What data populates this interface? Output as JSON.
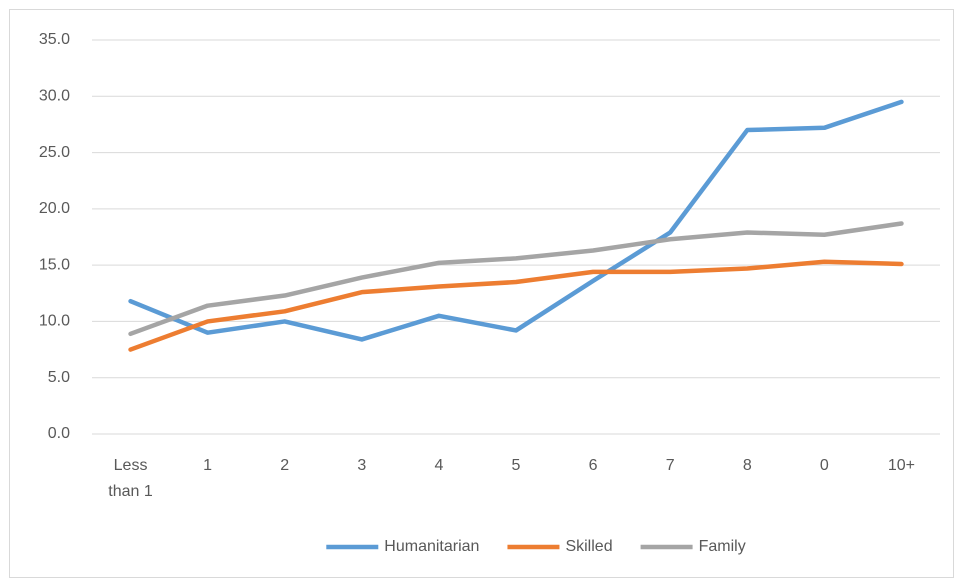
{
  "chart_data": {
    "type": "line",
    "categories": [
      "Less than 1",
      "1",
      "2",
      "3",
      "4",
      "5",
      "6",
      "7",
      "8",
      "0",
      "10+"
    ],
    "series": [
      {
        "name": "Humanitarian",
        "color": "#5b9bd5",
        "values": [
          11.8,
          9.0,
          10.0,
          8.4,
          10.5,
          9.2,
          13.6,
          17.9,
          27.0,
          27.2,
          29.5
        ]
      },
      {
        "name": "Skilled",
        "color": "#ed7d31",
        "values": [
          7.5,
          10.0,
          10.9,
          12.6,
          13.1,
          13.5,
          14.4,
          14.4,
          14.7,
          15.3,
          15.1
        ]
      },
      {
        "name": "Family",
        "color": "#a5a5a5",
        "values": [
          8.9,
          11.4,
          12.3,
          13.9,
          15.2,
          15.6,
          16.3,
          17.3,
          17.9,
          17.7,
          18.7
        ]
      }
    ],
    "ylim": [
      0,
      35
    ],
    "yticks": [
      {
        "value": 0,
        "label": "0.0"
      },
      {
        "value": 5,
        "label": "5.0"
      },
      {
        "value": 10,
        "label": "10.0"
      },
      {
        "value": 15,
        "label": "15.0"
      },
      {
        "value": 20,
        "label": "20.0"
      },
      {
        "value": 25,
        "label": "25.0"
      },
      {
        "value": 30,
        "label": "30.0"
      },
      {
        "value": 35,
        "label": "35.0"
      }
    ],
    "grid": true,
    "legend": "bottom"
  }
}
